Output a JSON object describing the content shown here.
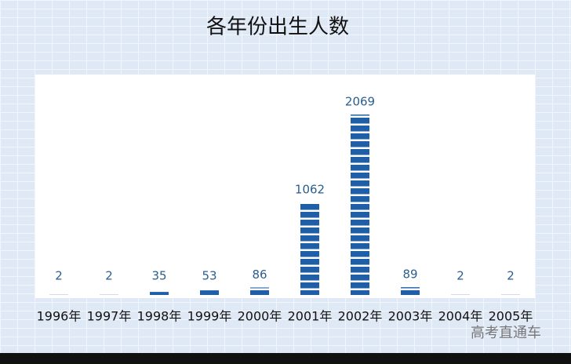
{
  "chart_data": {
    "type": "bar",
    "title": "各年份出生人数",
    "categories": [
      "1996年",
      "1997年",
      "1998年",
      "1999年",
      "2000年",
      "2001年",
      "2002年",
      "2003年",
      "2004年",
      "2005年"
    ],
    "values": [
      2,
      2,
      35,
      53,
      86,
      1062,
      2069,
      89,
      2,
      2
    ],
    "color": "#1f5fa8"
  },
  "watermark": "高考直通车"
}
